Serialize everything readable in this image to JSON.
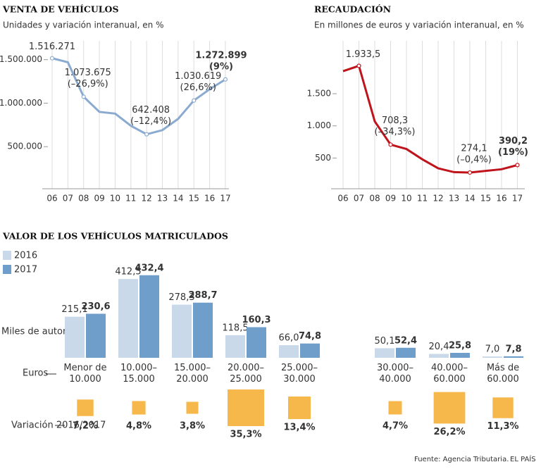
{
  "chart_data": [
    {
      "type": "line",
      "title": "VENTA DE VEHÍCULOS",
      "subtitle": "Unidades y variación interanual, en %",
      "categories": [
        "06",
        "07",
        "08",
        "09",
        "10",
        "11",
        "12",
        "13",
        "14",
        "15",
        "16",
        "17"
      ],
      "values": [
        1516271,
        1470000,
        1073675,
        900000,
        880000,
        740000,
        642408,
        690000,
        820000,
        1030619,
        1160000,
        1272899
      ],
      "value_labels": [
        "1.516.271",
        null,
        "1.073.675",
        null,
        null,
        null,
        "642.408",
        null,
        null,
        "1.030.619",
        null,
        "1.272.899"
      ],
      "change_labels": [
        null,
        null,
        "(–26,9%)",
        null,
        null,
        null,
        "(–12,4%)",
        null,
        null,
        "(26,6%)",
        null,
        "(9%)"
      ],
      "color": "#8aaad0",
      "ylim": [
        0,
        1700000
      ],
      "yticks": [
        {
          "value": 500000,
          "label": "500.000"
        },
        {
          "value": 1000000,
          "label": "1.000.000"
        },
        {
          "value": 1500000,
          "label": "1.500.000"
        }
      ]
    },
    {
      "type": "line",
      "title": "RECAUDACIÓN",
      "subtitle": "En millones de euros y variación interanual, en %",
      "categories": [
        "06",
        "07",
        "08",
        "09",
        "10",
        "11",
        "12",
        "13",
        "14",
        "15",
        "16",
        "17"
      ],
      "values": [
        1850,
        1933.5,
        1070,
        708.3,
        640,
        480,
        340,
        280,
        274.1,
        300,
        325,
        390.2
      ],
      "value_labels": [
        null,
        "1.933,5",
        null,
        "708,3",
        null,
        null,
        null,
        null,
        "274,1",
        null,
        null,
        "390,2"
      ],
      "change_labels": [
        null,
        null,
        null,
        "(–34,3%)",
        null,
        null,
        null,
        null,
        "(–0,4%)",
        null,
        null,
        "(19%)"
      ],
      "color": "#c0141c",
      "ylim": [
        0,
        2300
      ],
      "yticks": [
        500,
        {
          "value": 1000,
          "label": "1.000"
        },
        {
          "value": 1500,
          "label": "1.500"
        }
      ]
    },
    {
      "type": "bar",
      "title": "VALOR DE LOS VEHÍCULOS MATRICULADOS",
      "categories": [
        "Menor de 10.000",
        "10.000–15.000",
        "15.000–20.000",
        "20.000–25.000",
        "25.000–30.000",
        "30.000–40.000",
        "40.000–60.000",
        "Más de 60.000"
      ],
      "series": [
        {
          "name": "2016",
          "color": "#c9d9ea",
          "values": [
            215.1,
            412.5,
            278.3,
            118.5,
            66.0,
            50.1,
            20.4,
            7.0
          ],
          "value_labels": [
            "215,1",
            "412,5",
            "278,3",
            "118,5",
            "66,0",
            "50,1",
            "20,4",
            "7,0"
          ]
        },
        {
          "name": "2017",
          "color": "#6e9ec9",
          "values": [
            230.6,
            432.4,
            288.7,
            160.3,
            74.8,
            52.4,
            25.8,
            7.8
          ],
          "value_labels": [
            "230,6",
            "432,4",
            "288,7",
            "160,3",
            "74,8",
            "52,4",
            "25,8",
            "7,8"
          ]
        }
      ],
      "ylim": [
        0,
        450
      ],
      "y_label": "Miles de automóviles",
      "x_label": "Euros",
      "change_label": "Variación 2016/2017",
      "changes": [
        7.2,
        4.8,
        3.8,
        35.3,
        13.4,
        4.7,
        26.2,
        11.3
      ],
      "change_value_labels": [
        "7,2%",
        "4,8%",
        "3,8%",
        "35,3%",
        "13,4%",
        "4,7%",
        "26,2%",
        "11,3%"
      ],
      "change_color": "#f7b84b"
    }
  ],
  "source": "Fuente: Agencia Tributaria.",
  "brand": "EL PAÍS"
}
